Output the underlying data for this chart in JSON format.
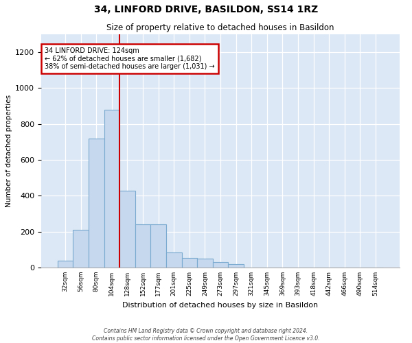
{
  "title": "34, LINFORD DRIVE, BASILDON, SS14 1RZ",
  "subtitle": "Size of property relative to detached houses in Basildon",
  "xlabel": "Distribution of detached houses by size in Basildon",
  "ylabel": "Number of detached properties",
  "bin_labels": [
    "32sqm",
    "56sqm",
    "80sqm",
    "104sqm",
    "128sqm",
    "152sqm",
    "177sqm",
    "201sqm",
    "225sqm",
    "249sqm",
    "273sqm",
    "297sqm",
    "321sqm",
    "345sqm",
    "369sqm",
    "393sqm",
    "418sqm",
    "442sqm",
    "466sqm",
    "490sqm",
    "514sqm"
  ],
  "bar_heights": [
    40,
    210,
    720,
    880,
    430,
    240,
    240,
    85,
    55,
    50,
    30,
    20,
    0,
    0,
    0,
    0,
    0,
    0,
    0,
    0,
    0
  ],
  "bar_color": "#c5d8ed",
  "bar_edge_color": "#7aaacf",
  "vline_bin_index": 4,
  "annotation_line1": "34 LINFORD DRIVE: 124sqm",
  "annotation_line2": "← 62% of detached houses are smaller (1,682)",
  "annotation_line3": "38% of semi-detached houses are larger (1,031) →",
  "annotation_box_color": "#ffffff",
  "annotation_box_edge": "#cc0000",
  "vline_color": "#cc0000",
  "ylim": [
    0,
    1300
  ],
  "yticks": [
    0,
    200,
    400,
    600,
    800,
    1000,
    1200
  ],
  "background_color": "#dce8f5",
  "footer1": "Contains HM Land Registry data © Crown copyright and database right 2024.",
  "footer2": "Contains public sector information licensed under the Open Government Licence v3.0."
}
